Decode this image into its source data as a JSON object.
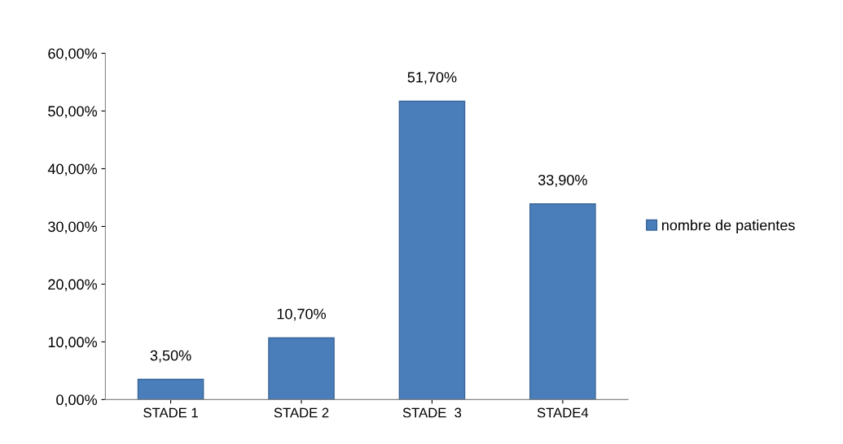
{
  "chart_data": {
    "type": "bar",
    "categories": [
      "STADE 1",
      "STADE 2",
      "STADE  3",
      "STADE4"
    ],
    "series": [
      {
        "name": "nombre de patientes",
        "color": "#4a7ebb",
        "values": [
          3.5,
          10.7,
          51.7,
          33.9
        ],
        "value_labels": [
          "3,50%",
          "10,70%",
          "51,70%",
          "33,90%"
        ]
      }
    ],
    "ylim": [
      0,
      60
    ],
    "yticks": [
      {
        "value": 0,
        "label": "0,00%"
      },
      {
        "value": 10,
        "label": "10,00%"
      },
      {
        "value": 20,
        "label": "20,00%"
      },
      {
        "value": 30,
        "label": "30,00%"
      },
      {
        "value": 40,
        "label": "40,00%"
      },
      {
        "value": 50,
        "label": "50,00%"
      },
      {
        "value": 60,
        "label": "60,00%"
      }
    ],
    "grid": false,
    "legend": "right"
  }
}
